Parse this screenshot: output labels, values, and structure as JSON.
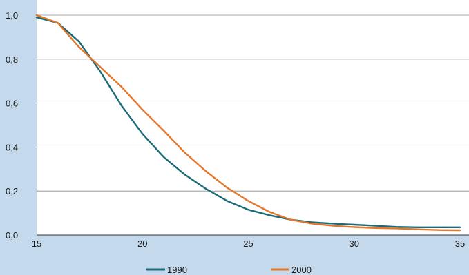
{
  "chart_data": {
    "type": "line",
    "title": "",
    "xlabel": "",
    "ylabel": "",
    "xlim": [
      15,
      35
    ],
    "ylim": [
      0,
      1
    ],
    "x_ticks": [
      15,
      20,
      25,
      30,
      35
    ],
    "x_tick_labels": [
      "15",
      "20",
      "25",
      "30",
      "35"
    ],
    "y_ticks": [
      0,
      0.2,
      0.4,
      0.6,
      0.8,
      1.0
    ],
    "y_tick_labels": [
      "0,0",
      "0,2",
      "0,4",
      "0,6",
      "0,8",
      "1,0"
    ],
    "grid": "horizontal",
    "legend_position": "bottom",
    "x": [
      15,
      16,
      17,
      18,
      19,
      20,
      21,
      22,
      23,
      24,
      25,
      26,
      27,
      28,
      29,
      30,
      31,
      32,
      33,
      34,
      35
    ],
    "series": [
      {
        "name": "1990",
        "color": "#1a6b7a",
        "values": [
          0.99,
          0.965,
          0.88,
          0.745,
          0.59,
          0.46,
          0.355,
          0.275,
          0.21,
          0.155,
          0.115,
          0.09,
          0.07,
          0.058,
          0.052,
          0.047,
          0.042,
          0.037,
          0.035,
          0.035,
          0.035
        ]
      },
      {
        "name": "2000",
        "color": "#e5762a",
        "values": [
          1.0,
          0.965,
          0.855,
          0.765,
          0.675,
          0.57,
          0.475,
          0.375,
          0.29,
          0.215,
          0.155,
          0.105,
          0.07,
          0.052,
          0.042,
          0.036,
          0.032,
          0.03,
          0.026,
          0.023,
          0.022
        ]
      }
    ]
  }
}
